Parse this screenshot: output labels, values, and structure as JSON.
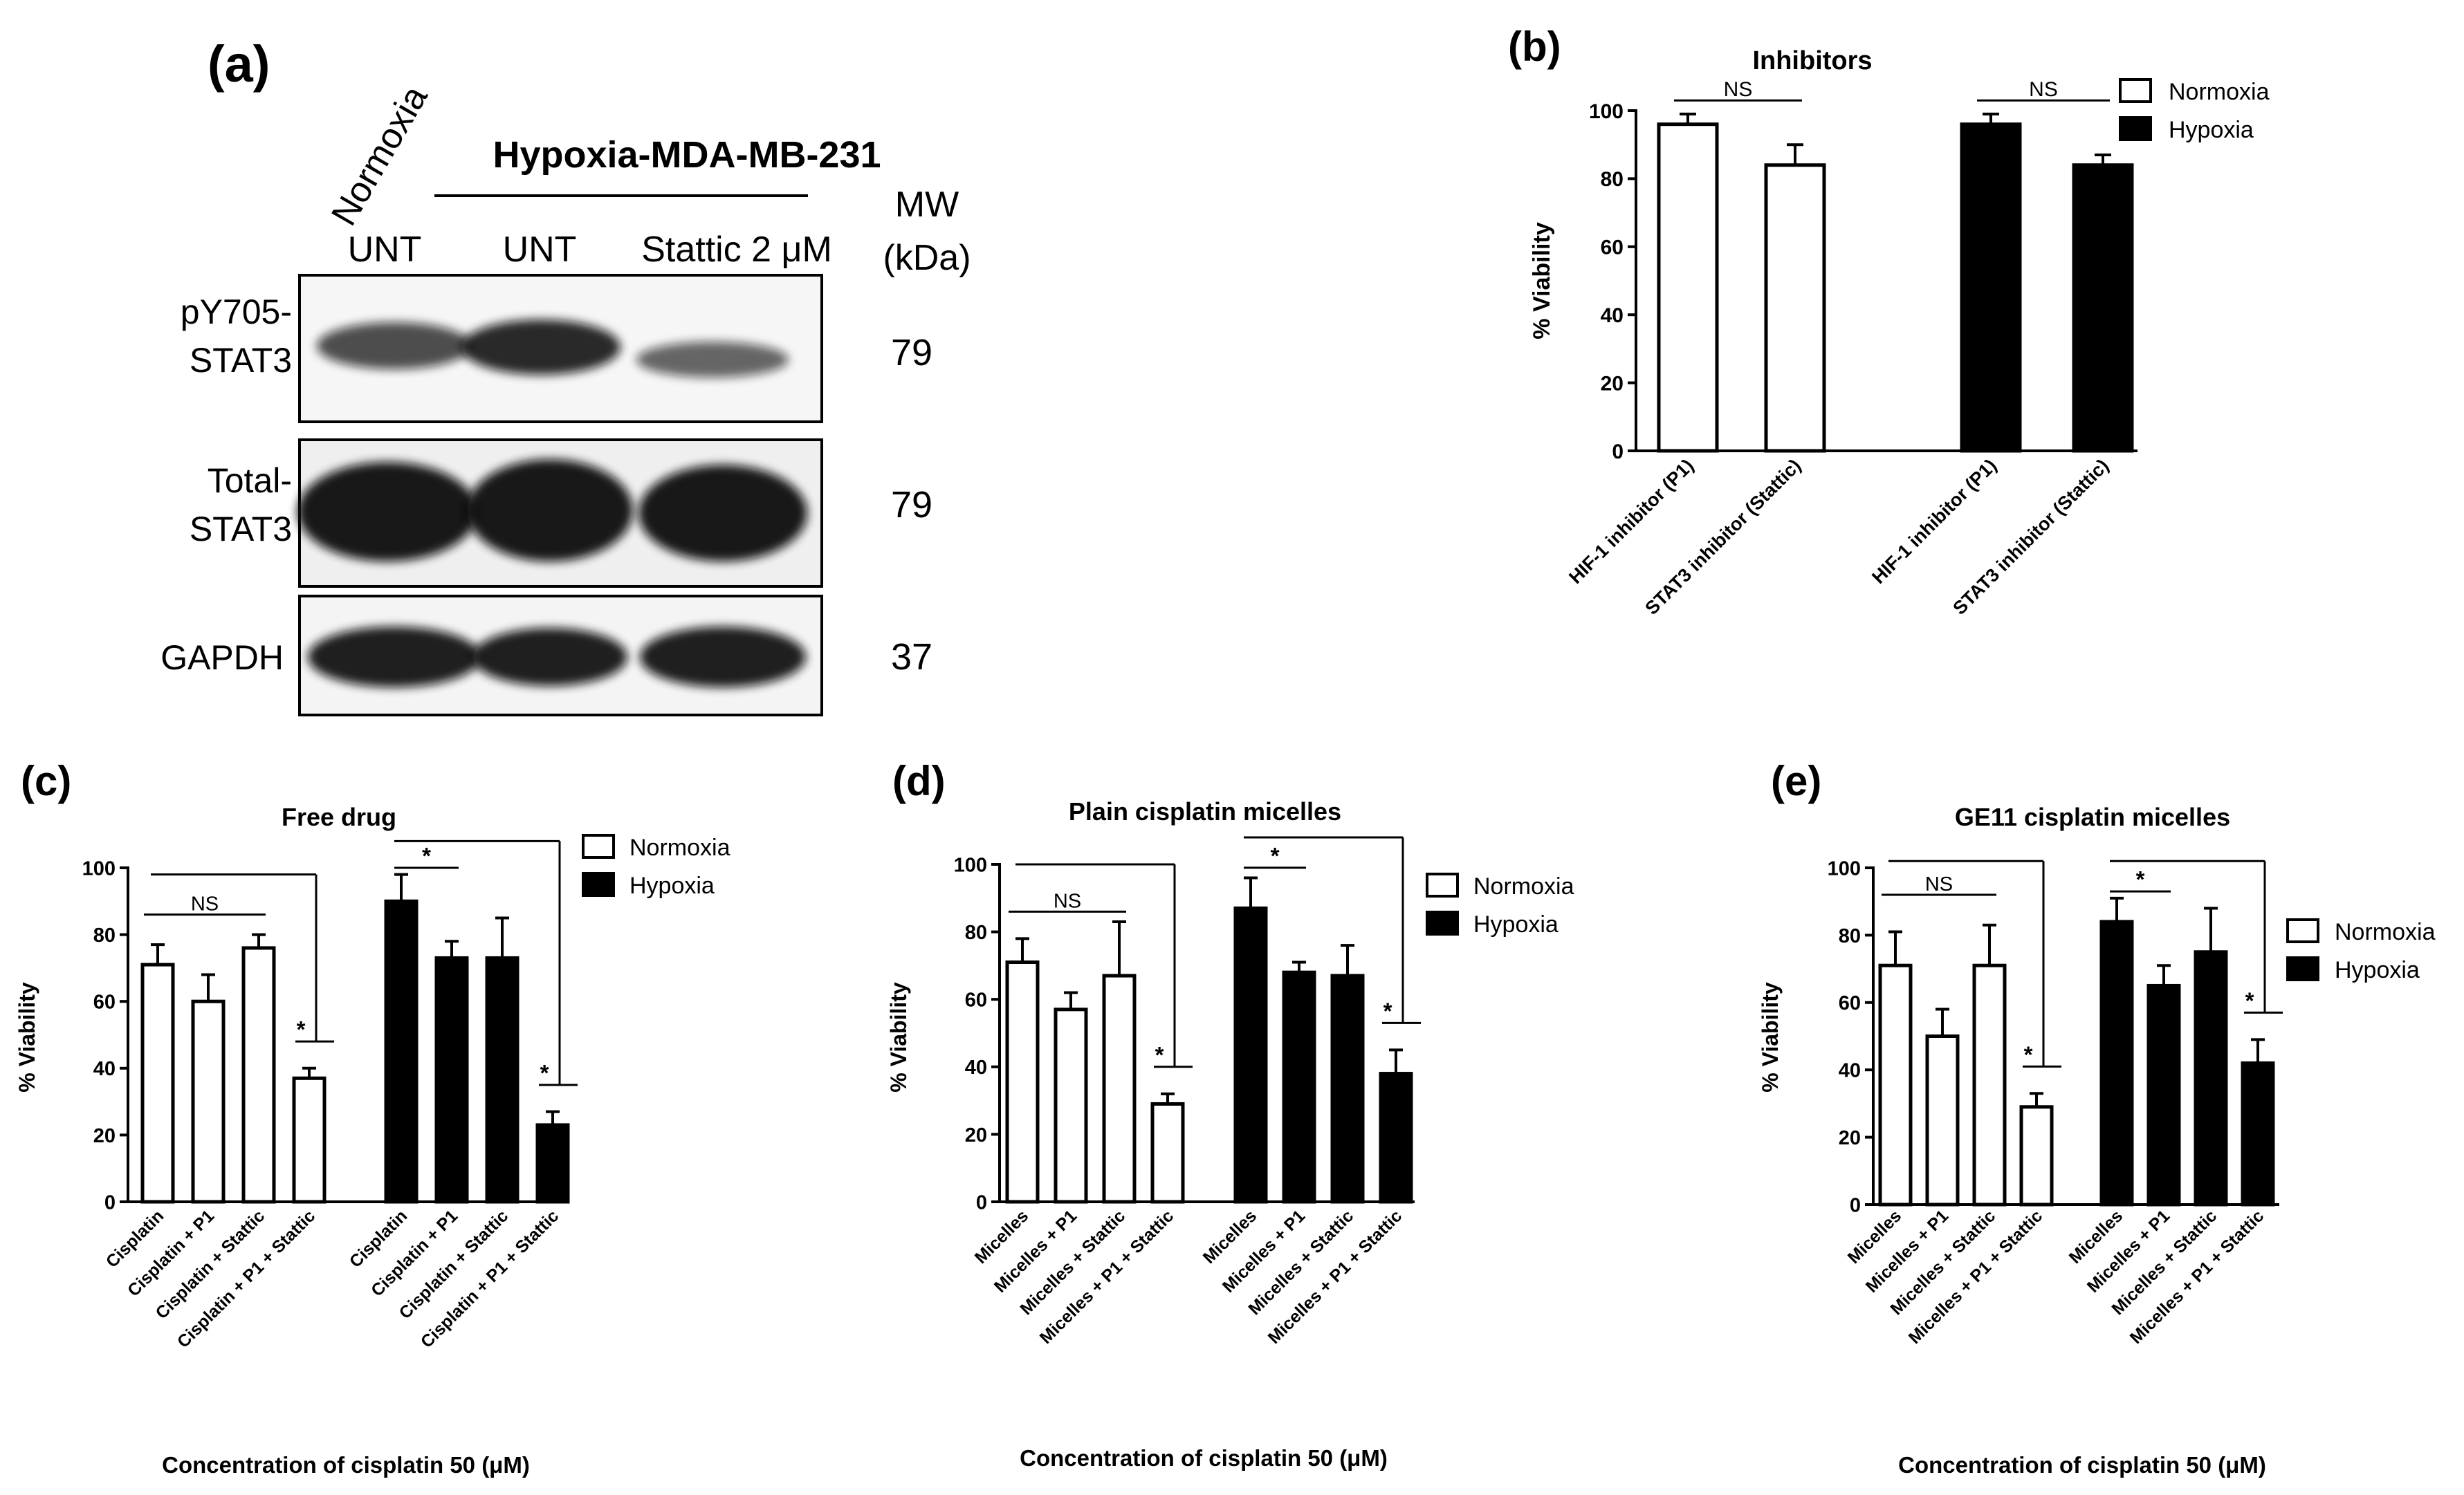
{
  "figure": {
    "panel_a": {
      "label": "(a)",
      "header_normoxia": "Normoxia",
      "header_hypoxia": "Hypoxia-MDA-MB-231",
      "lanes": [
        "UNT",
        "UNT",
        "Stattic 2 μM"
      ],
      "mw_header": [
        "MW",
        "(kDa)"
      ],
      "blots": [
        {
          "label": [
            "pY705-",
            "STAT3"
          ],
          "mw": "79",
          "intensity": [
            0.75,
            0.9,
            0.5
          ]
        },
        {
          "label": [
            "Total-",
            "STAT3"
          ],
          "mw": "79",
          "intensity": [
            1.0,
            1.0,
            1.0
          ]
        },
        {
          "label": [
            "GAPDH"
          ],
          "mw": "37",
          "intensity": [
            0.95,
            0.95,
            0.95
          ]
        }
      ]
    },
    "colors": {
      "normoxia": "#ffffff",
      "hypoxia": "#000000",
      "axis": "#000000"
    }
  },
  "chart_data": [
    {
      "panel": "(b)",
      "type": "bar",
      "title": "Inhibitors",
      "ylabel": "% Viability",
      "xlabel": "",
      "ylim": [
        0,
        100
      ],
      "yticks": [
        0,
        20,
        40,
        60,
        80,
        100
      ],
      "legend": [
        "Normoxia",
        "Hypoxia"
      ],
      "legend_position": "top-right",
      "groups": [
        {
          "series": "Normoxia",
          "categories": [
            "HIF-1 inhibitor (P1)",
            "STAT3 inhibitor (Stattic)"
          ],
          "values": [
            96,
            84
          ],
          "errors": [
            3,
            6
          ]
        },
        {
          "series": "Hypoxia",
          "categories": [
            "HIF-1 inhibitor (P1)",
            "STAT3 inhibitor (Stattic)"
          ],
          "values": [
            96,
            84
          ],
          "errors": [
            3,
            3
          ]
        }
      ],
      "annotations": [
        {
          "text": "NS",
          "group": 0,
          "from": 0,
          "to": 1,
          "y": 103
        },
        {
          "text": "NS",
          "group": 1,
          "from": 0,
          "to": 1,
          "y": 103
        }
      ]
    },
    {
      "panel": "(c)",
      "type": "bar",
      "title": "Free drug",
      "ylabel": "% Viability",
      "xlabel": "Concentration of cisplatin 50 (μM)",
      "ylim": [
        0,
        100
      ],
      "yticks": [
        0,
        20,
        40,
        60,
        80,
        100
      ],
      "legend": [
        "Normoxia",
        "Hypoxia"
      ],
      "legend_position": "top-right",
      "groups": [
        {
          "series": "Normoxia",
          "categories": [
            "Cisplatin",
            "Cisplatin + P1",
            "Cisplatin + Stattic",
            "Cisplatin + P1 + Stattic"
          ],
          "values": [
            71,
            60,
            76,
            37
          ],
          "errors": [
            6,
            8,
            4,
            3
          ]
        },
        {
          "series": "Hypoxia",
          "categories": [
            "Cisplatin",
            "Cisplatin + P1",
            "Cisplatin + Stattic",
            "Cisplatin + P1 + Stattic"
          ],
          "values": [
            90,
            73,
            73,
            23
          ],
          "errors": [
            8,
            5,
            12,
            4
          ]
        }
      ],
      "annotations": [
        {
          "text": "NS",
          "group": 0,
          "from": 0,
          "to": 2,
          "y": 86
        },
        {
          "text": "*",
          "group": 0,
          "from": 0,
          "to": 3,
          "y": 98
        },
        {
          "text": "*",
          "group": 1,
          "from": 0,
          "to": 1,
          "y": 100
        },
        {
          "text": "*",
          "group": 1,
          "from": 0,
          "to": 3,
          "y": 108
        }
      ]
    },
    {
      "panel": "(d)",
      "type": "bar",
      "title": "Plain cisplatin micelles",
      "ylabel": "% Viability",
      "xlabel": "Concentration of cisplatin 50 (μM)",
      "ylim": [
        0,
        100
      ],
      "yticks": [
        0,
        20,
        40,
        60,
        80,
        100
      ],
      "legend": [
        "Normoxia",
        "Hypoxia"
      ],
      "legend_position": "top-right",
      "groups": [
        {
          "series": "Normoxia",
          "categories": [
            "Micelles",
            "Micelles + P1",
            "Micelles + Stattic",
            "Micelles + P1 + Stattic"
          ],
          "values": [
            71,
            57,
            67,
            29
          ],
          "errors": [
            7,
            5,
            16,
            3
          ]
        },
        {
          "series": "Hypoxia",
          "categories": [
            "Micelles",
            "Micelles + P1",
            "Micelles + Stattic",
            "Micelles + P1 + Stattic"
          ],
          "values": [
            87,
            68,
            67,
            38
          ],
          "errors": [
            9,
            3,
            9,
            7
          ]
        }
      ],
      "annotations": [
        {
          "text": "NS",
          "group": 0,
          "from": 0,
          "to": 2,
          "y": 86
        },
        {
          "text": "*",
          "group": 0,
          "from": 0,
          "to": 3,
          "y": 100
        },
        {
          "text": "*",
          "group": 1,
          "from": 0,
          "to": 1,
          "y": 99
        },
        {
          "text": "*",
          "group": 1,
          "from": 0,
          "to": 3,
          "y": 108
        }
      ]
    },
    {
      "panel": "(e)",
      "type": "bar",
      "title": "GE11 cisplatin micelles",
      "ylabel": "% Viability",
      "xlabel": "Concentration of cisplatin 50 (μM)",
      "ylim": [
        0,
        100
      ],
      "yticks": [
        0,
        20,
        40,
        60,
        80,
        100
      ],
      "legend": [
        "Normoxia",
        "Hypoxia"
      ],
      "legend_position": "top-right",
      "groups": [
        {
          "series": "Normoxia",
          "categories": [
            "Micelles",
            "Micelles + P1",
            "Micelles + Stattic",
            "Micelles + P1 + Stattic"
          ],
          "values": [
            71,
            50,
            71,
            29
          ],
          "errors": [
            10,
            8,
            12,
            4
          ]
        },
        {
          "series": "Hypoxia",
          "categories": [
            "Micelles",
            "Micelles + P1",
            "Micelles + Stattic",
            "Micelles + P1 + Stattic"
          ],
          "values": [
            84,
            65,
            75,
            42
          ],
          "errors": [
            7,
            6,
            13,
            7
          ]
        }
      ],
      "annotations": [
        {
          "text": "NS",
          "group": 0,
          "from": 0,
          "to": 2,
          "y": 92
        },
        {
          "text": "*",
          "group": 0,
          "from": 0,
          "to": 3,
          "y": 102
        },
        {
          "text": "*",
          "group": 1,
          "from": 0,
          "to": 1,
          "y": 93
        },
        {
          "text": "*",
          "group": 1,
          "from": 0,
          "to": 3,
          "y": 102
        }
      ]
    }
  ]
}
